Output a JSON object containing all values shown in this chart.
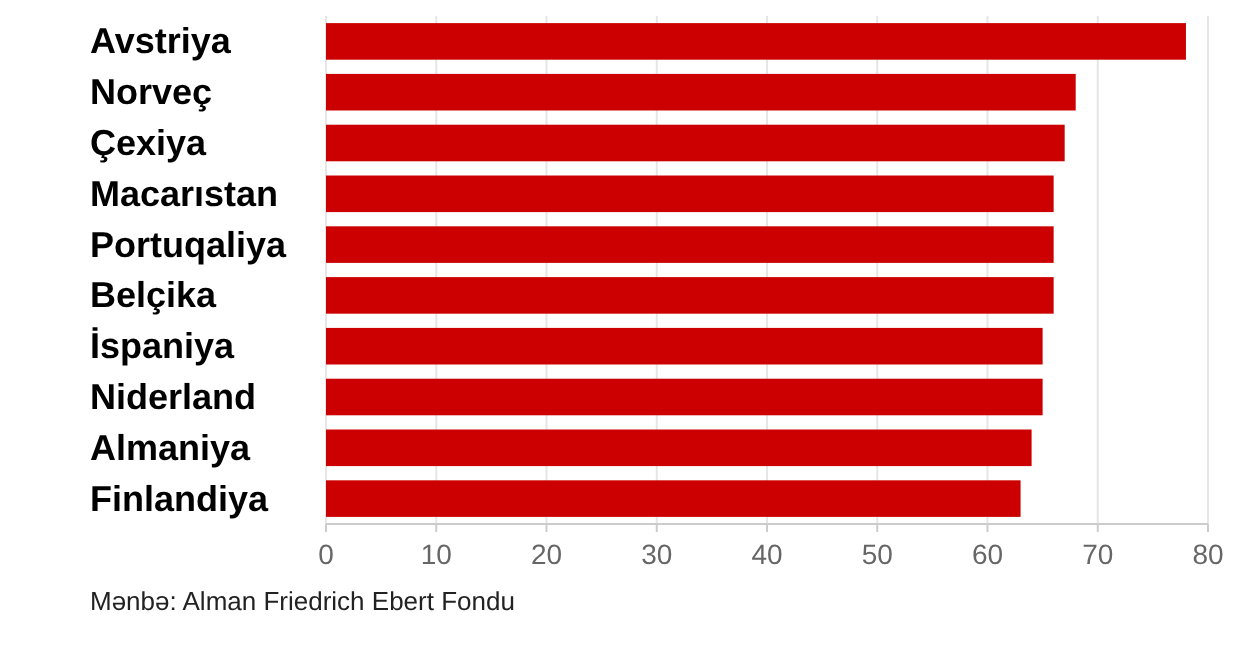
{
  "chart_data": {
    "type": "bar",
    "orientation": "horizontal",
    "categories": [
      "Avstriya",
      "Norveç",
      "Çexiya",
      "Macarıstan",
      "Portuqaliya",
      "Belçika",
      "İspaniya",
      "Niderland",
      "Almaniya",
      "Finlandiya"
    ],
    "values": [
      78,
      68,
      67,
      66,
      66,
      66,
      65,
      65,
      64,
      63
    ],
    "color": "#cc0000",
    "xlim": [
      0,
      80
    ],
    "xticks": [
      0,
      10,
      20,
      30,
      40,
      50,
      60,
      70,
      80
    ],
    "grid": "x",
    "annotations": [
      "Mənbə: Alman Friedrich Ebert Fondu"
    ]
  }
}
